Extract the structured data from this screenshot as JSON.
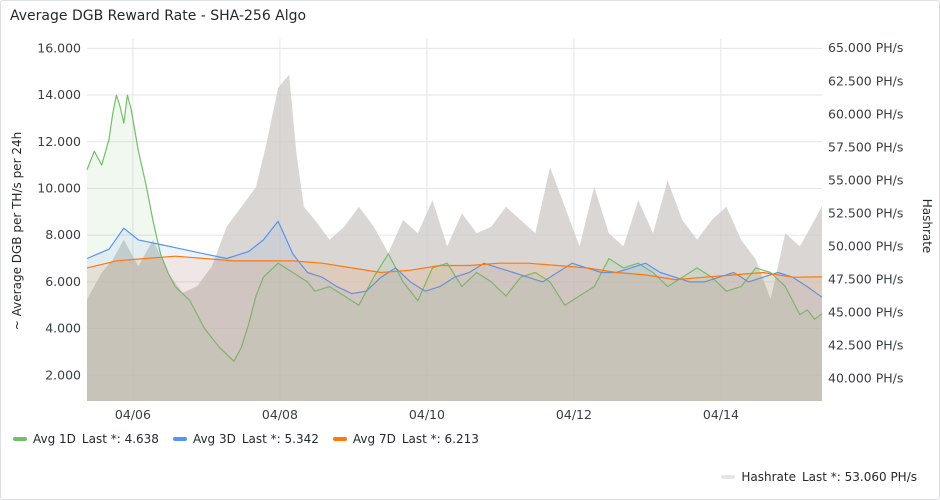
{
  "panel": {
    "title": "Average DGB Reward Rate - SHA-256 Algo"
  },
  "chart_data": {
    "type": "line",
    "title": "Average DGB Reward Rate - SHA-256 Algo",
    "y_left_label": "~ Average DGB per TH/s per 24h",
    "y_right_label": "Hashrate",
    "y_left_ticks": [
      "2.000",
      "4.000",
      "6.000",
      "8.000",
      "10.000",
      "12.000",
      "14.000",
      "16.000"
    ],
    "y_left_range": [
      0.9,
      16.4
    ],
    "y_right_ticks": [
      "40.000 PH/s",
      "42.500 PH/s",
      "45.000 PH/s",
      "47.500 PH/s",
      "50.000 PH/s",
      "52.500 PH/s",
      "55.000 PH/s",
      "57.500 PH/s",
      "60.000 PH/s",
      "62.500 PH/s",
      "65.000 PH/s"
    ],
    "y_right_range": [
      38.3,
      65.7
    ],
    "x_ticks": [
      "04/06",
      "04/08",
      "04/10",
      "04/12",
      "04/14"
    ],
    "x_range_days": [
      "04/05 09:00",
      "04/15 09:00"
    ],
    "grid": true,
    "legend": "bottom",
    "series": [
      {
        "name": "Avg 1D",
        "axis": "left",
        "color": "#73bf69",
        "x_days": [
          0.0,
          0.1,
          0.2,
          0.3,
          0.35,
          0.4,
          0.45,
          0.5,
          0.55,
          0.6,
          0.7,
          0.8,
          0.9,
          1.0,
          1.1,
          1.2,
          1.4,
          1.6,
          1.8,
          2.0,
          2.1,
          2.2,
          2.3,
          2.4,
          2.6,
          2.8,
          3.0,
          3.1,
          3.3,
          3.5,
          3.7,
          3.9,
          4.1,
          4.3,
          4.5,
          4.7,
          4.9,
          5.1,
          5.3,
          5.5,
          5.7,
          5.9,
          6.1,
          6.3,
          6.5,
          6.7,
          6.9,
          7.1,
          7.3,
          7.5,
          7.7,
          7.9,
          8.1,
          8.3,
          8.5,
          8.7,
          8.9,
          9.1,
          9.3,
          9.5,
          9.6,
          9.7,
          9.8,
          9.9,
          10.0
        ],
        "values": [
          10.8,
          11.6,
          11.0,
          12.1,
          13.2,
          14.0,
          13.5,
          12.8,
          14.0,
          13.4,
          11.6,
          10.2,
          8.6,
          7.2,
          6.4,
          5.8,
          5.2,
          4.0,
          3.2,
          2.6,
          3.2,
          4.2,
          5.4,
          6.2,
          6.8,
          6.4,
          6.0,
          5.6,
          5.8,
          5.4,
          5.0,
          6.2,
          7.2,
          6.0,
          5.2,
          6.6,
          6.8,
          5.8,
          6.4,
          6.0,
          5.4,
          6.2,
          6.4,
          6.0,
          5.0,
          5.4,
          5.8,
          7.0,
          6.6,
          6.8,
          6.4,
          5.8,
          6.2,
          6.6,
          6.2,
          5.6,
          5.8,
          6.6,
          6.4,
          5.8,
          5.2,
          4.6,
          4.8,
          4.4,
          4.638
        ]
      },
      {
        "name": "Avg 3D",
        "axis": "left",
        "color": "#5794f2",
        "x_days": [
          0.0,
          0.3,
          0.5,
          0.7,
          1.0,
          1.3,
          1.6,
          1.9,
          2.2,
          2.4,
          2.5,
          2.6,
          2.7,
          2.8,
          2.9,
          3.0,
          3.2,
          3.4,
          3.6,
          3.8,
          4.0,
          4.2,
          4.4,
          4.6,
          4.8,
          5.0,
          5.2,
          5.4,
          5.6,
          5.8,
          6.0,
          6.2,
          6.4,
          6.6,
          6.8,
          7.0,
          7.2,
          7.4,
          7.6,
          7.8,
          8.0,
          8.2,
          8.4,
          8.6,
          8.8,
          9.0,
          9.2,
          9.4,
          9.6,
          9.8,
          10.0
        ],
        "values": [
          7.0,
          7.4,
          8.3,
          7.8,
          7.6,
          7.4,
          7.2,
          7.0,
          7.3,
          7.8,
          8.2,
          8.6,
          7.9,
          7.2,
          6.8,
          6.4,
          6.2,
          5.8,
          5.5,
          5.6,
          6.2,
          6.6,
          6.0,
          5.6,
          5.8,
          6.2,
          6.4,
          6.8,
          6.6,
          6.4,
          6.2,
          6.0,
          6.4,
          6.8,
          6.6,
          6.4,
          6.4,
          6.6,
          6.8,
          6.4,
          6.2,
          6.0,
          6.0,
          6.2,
          6.4,
          6.0,
          6.2,
          6.4,
          6.2,
          5.8,
          5.342
        ]
      },
      {
        "name": "Avg 7D",
        "axis": "left",
        "color": "#ff780a",
        "x_days": [
          0.0,
          0.4,
          0.8,
          1.2,
          1.6,
          2.0,
          2.4,
          2.8,
          3.2,
          3.6,
          4.0,
          4.4,
          4.8,
          5.2,
          5.6,
          6.0,
          6.4,
          6.8,
          7.2,
          7.6,
          8.0,
          8.4,
          8.8,
          9.2,
          9.6,
          10.0
        ],
        "values": [
          6.6,
          6.9,
          7.0,
          7.1,
          7.0,
          6.9,
          6.9,
          6.9,
          6.8,
          6.6,
          6.4,
          6.5,
          6.7,
          6.7,
          6.8,
          6.8,
          6.7,
          6.6,
          6.4,
          6.3,
          6.1,
          6.2,
          6.3,
          6.4,
          6.2,
          6.213
        ]
      },
      {
        "name": "Hashrate",
        "axis": "right",
        "color": "#cfcfd1",
        "x_days": [
          0.0,
          0.2,
          0.35,
          0.5,
          0.7,
          0.9,
          1.1,
          1.3,
          1.5,
          1.7,
          1.9,
          2.1,
          2.3,
          2.45,
          2.6,
          2.75,
          2.85,
          2.95,
          3.1,
          3.3,
          3.5,
          3.7,
          3.9,
          4.1,
          4.3,
          4.5,
          4.7,
          4.9,
          5.1,
          5.3,
          5.5,
          5.7,
          5.9,
          6.1,
          6.3,
          6.5,
          6.7,
          6.9,
          7.1,
          7.3,
          7.5,
          7.7,
          7.9,
          8.1,
          8.3,
          8.5,
          8.7,
          8.9,
          9.1,
          9.3,
          9.5,
          9.7,
          9.9,
          10.0
        ],
        "values": [
          46.0,
          48.0,
          49.0,
          50.5,
          48.5,
          50.5,
          48.0,
          46.5,
          47.0,
          48.5,
          51.5,
          53.0,
          54.5,
          58.0,
          62.0,
          63.0,
          57.0,
          53.0,
          52.0,
          50.5,
          51.5,
          53.0,
          51.5,
          49.5,
          52.0,
          51.0,
          53.5,
          50.0,
          52.5,
          51.0,
          51.5,
          53.0,
          52.0,
          51.0,
          56.0,
          53.0,
          50.0,
          54.5,
          51.0,
          50.0,
          53.5,
          51.0,
          55.0,
          52.0,
          50.5,
          52.0,
          53.0,
          50.5,
          49.0,
          46.0,
          51.0,
          50.0,
          52.0,
          53.06
        ]
      }
    ]
  },
  "legend": {
    "items": [
      {
        "label": "Avg 1D",
        "last": "Last *: 4.638",
        "color": "#73bf69"
      },
      {
        "label": "Avg 3D",
        "last": "Last *: 5.342",
        "color": "#5794f2"
      },
      {
        "label": "Avg 7D",
        "last": "Last *: 6.213",
        "color": "#ff780a"
      }
    ],
    "hashrate": {
      "label": "Hashrate",
      "last": "Last *: 53.060 PH/s",
      "color": "#e6e6e8"
    }
  }
}
